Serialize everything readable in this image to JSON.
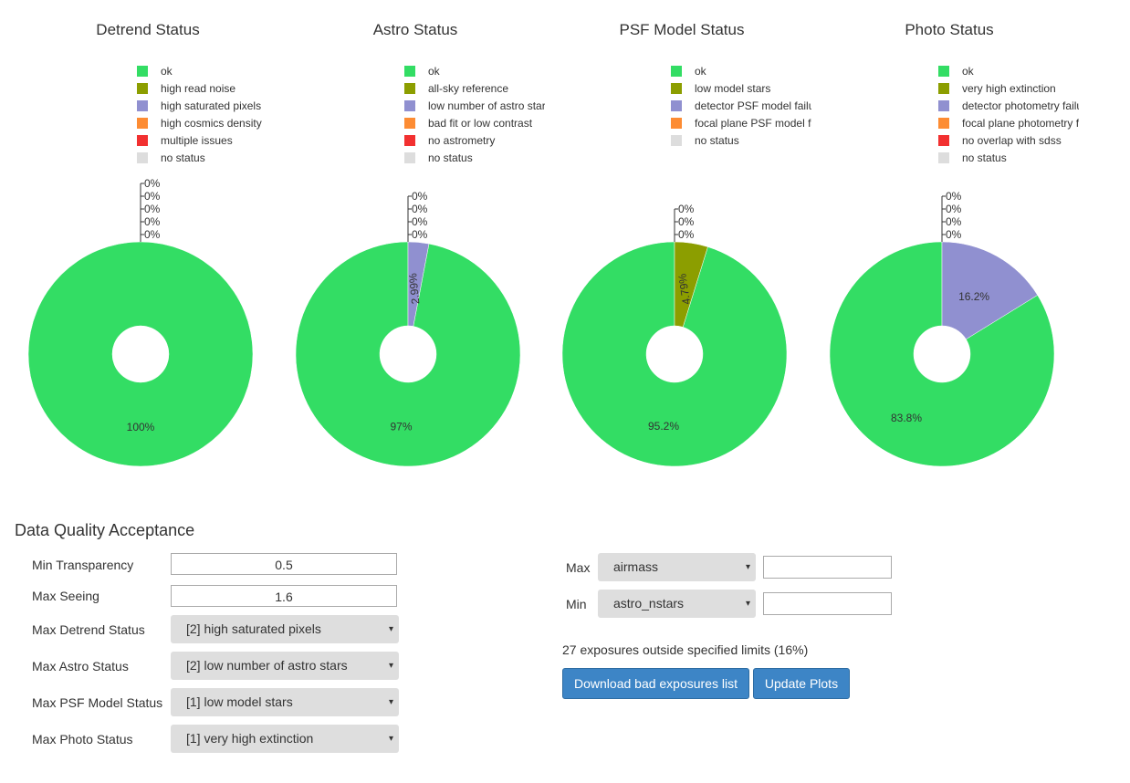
{
  "chart_data": [
    {
      "type": "pie",
      "title": "Detrend Status",
      "legend": [
        "ok",
        "high read noise",
        "high saturated pixels",
        "high cosmics density",
        "multiple issues",
        "no status"
      ],
      "colors": [
        "#33dd64",
        "#8c9e00",
        "#9090d0",
        "#fd8c33",
        "#f23030",
        "#dddddd"
      ],
      "values": [
        100,
        0,
        0,
        0,
        0,
        0
      ],
      "labels": [
        "100%",
        "0%",
        "0%",
        "0%",
        "0%",
        "0%"
      ]
    },
    {
      "type": "pie",
      "title": "Astro Status",
      "legend": [
        "ok",
        "all-sky reference",
        "low number of astro stars",
        "bad fit or low contrast",
        "no astrometry",
        "no status"
      ],
      "colors": [
        "#33dd64",
        "#8c9e00",
        "#9090d0",
        "#fd8c33",
        "#f23030",
        "#dddddd"
      ],
      "values": [
        97,
        0,
        2.99,
        0,
        0,
        0
      ],
      "labels": [
        "97%",
        "0%",
        "2.99%",
        "0%",
        "0%",
        "0%"
      ]
    },
    {
      "type": "pie",
      "title": "PSF Model Status",
      "legend": [
        "ok",
        "low model stars",
        "detector PSF model failure",
        "focal plane PSF model failure",
        "no status"
      ],
      "colors": [
        "#33dd64",
        "#8c9e00",
        "#9090d0",
        "#fd8c33",
        "#dddddd"
      ],
      "values": [
        95.2,
        4.79,
        0,
        0,
        0
      ],
      "labels": [
        "95.2%",
        "4.79%",
        "0%",
        "0%",
        "0%"
      ]
    },
    {
      "type": "pie",
      "title": "Photo Status",
      "legend": [
        "ok",
        "very high extinction",
        "detector photometry failure",
        "focal plane photometry failure",
        "no overlap with sdss",
        "no status"
      ],
      "colors": [
        "#33dd64",
        "#8c9e00",
        "#9090d0",
        "#fd8c33",
        "#f23030",
        "#dddddd"
      ],
      "values": [
        83.8,
        0,
        16.2,
        0,
        0,
        0
      ],
      "labels": [
        "83.8%",
        "0%",
        "16.2%",
        "0%",
        "0%",
        "0%"
      ]
    }
  ],
  "form": {
    "title": "Data Quality Acceptance",
    "min_transparency_label": "Min Transparency",
    "min_transparency_value": "0.5",
    "max_seeing_label": "Max Seeing",
    "max_seeing_value": "1.6",
    "max_detrend_label": "Max Detrend Status",
    "max_detrend_value": "[2] high saturated pixels",
    "max_astro_label": "Max Astro Status",
    "max_astro_value": "[2] low number of astro stars",
    "max_psf_label": "Max PSF Model Status",
    "max_psf_value": "[1] low model stars",
    "max_photo_label": "Max Photo Status",
    "max_photo_value": "[1] very high extinction"
  },
  "limits": {
    "max_label": "Max",
    "max_field": "airmass",
    "max_value": "",
    "min_label": "Min",
    "min_field": "astro_nstars",
    "min_value": "",
    "summary": "27 exposures outside specified limits (16%)",
    "download_label": "Download bad exposures list",
    "update_label": "Update Plots"
  },
  "icons": {
    "dropdown": "▾"
  }
}
